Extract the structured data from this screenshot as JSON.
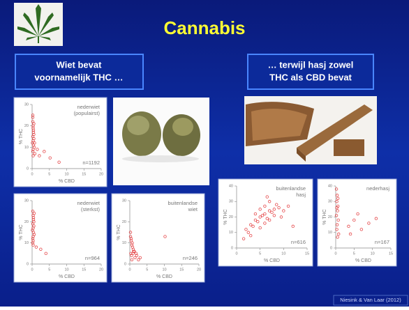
{
  "header": {
    "title": "Cannabis"
  },
  "callouts": [
    {
      "lines": [
        "Wiet bevat",
        "voornamelijk THC …"
      ]
    },
    {
      "lines": [
        "… terwijl hasj zowel",
        "THC als CBD bevat"
      ]
    }
  ],
  "footer": "Niesink & Van Laar (2012)",
  "chart_data": [
    {
      "type": "scatter",
      "title_lines": [
        "nederwiet",
        "(populairst)"
      ],
      "n_label": "n=1192",
      "x_label": "% CBD",
      "y_label": "% THC",
      "xlim": [
        0,
        20
      ],
      "xticks": [
        0,
        5,
        10,
        15,
        20
      ],
      "ylim": [
        0,
        30
      ],
      "yticks": [
        0,
        10,
        20,
        30
      ],
      "color": "#e0282a",
      "x": [
        0.2,
        0.3,
        0.4,
        0.2,
        0.5,
        0.3,
        0.1,
        0.4,
        0.6,
        0.3,
        0.2,
        0.5,
        0.4,
        0.3,
        0.7,
        0.2,
        0.8,
        0.3,
        0.5,
        0.2,
        3.5,
        5.2,
        7.8,
        2.1,
        1.5
      ],
      "y": [
        22,
        19,
        17,
        15,
        14,
        13,
        12,
        11,
        10,
        9,
        8,
        16,
        18,
        20,
        12,
        24,
        7,
        6,
        21,
        25,
        8,
        5,
        3,
        6,
        9
      ]
    },
    {
      "type": "scatter",
      "title_lines": [
        "nederwiet",
        "(sterkst)"
      ],
      "n_label": "n=964",
      "x_label": "% CBD",
      "y_label": "% THC",
      "xlim": [
        0,
        20
      ],
      "xticks": [
        0,
        5,
        10,
        15,
        20
      ],
      "ylim": [
        0,
        30
      ],
      "yticks": [
        0,
        10,
        20,
        30
      ],
      "color": "#e0282a",
      "x": [
        0.2,
        0.3,
        0.4,
        0.2,
        0.5,
        0.3,
        0.1,
        0.4,
        0.6,
        0.3,
        0.2,
        0.5,
        0.4,
        0.3,
        0.2,
        0.6,
        0.3,
        2.5,
        4.0,
        1.2
      ],
      "y": [
        25,
        23,
        21,
        19,
        18,
        17,
        16,
        15,
        14,
        13,
        12,
        20,
        22,
        11,
        10,
        24,
        9,
        7,
        5,
        8
      ]
    },
    {
      "type": "scatter",
      "title_lines": [
        "buitenlandse",
        "wiet"
      ],
      "n_label": "n=246",
      "x_label": "% CBD",
      "y_label": "% THC",
      "xlim": [
        0,
        20
      ],
      "xticks": [
        0,
        5,
        10,
        15,
        20
      ],
      "ylim": [
        0,
        30
      ],
      "yticks": [
        0,
        10,
        20,
        30
      ],
      "color": "#e0282a",
      "x": [
        0.2,
        0.4,
        0.6,
        0.8,
        1.0,
        1.3,
        0.3,
        0.5,
        0.9,
        1.5,
        2.0,
        2.5,
        0.7,
        1.1,
        0.2,
        0.4,
        3.0,
        1.8,
        0.6,
        10.2
      ],
      "y": [
        13,
        11,
        9,
        8,
        7,
        6,
        5,
        4,
        5,
        3,
        4,
        2,
        10,
        6,
        15,
        12,
        3,
        5,
        2,
        13
      ]
    },
    {
      "type": "scatter",
      "title_lines": [
        "buitenlandse",
        "hasj"
      ],
      "n_label": "n=616",
      "x_label": "% CBD",
      "y_label": "% THC",
      "xlim": [
        0,
        15
      ],
      "xticks": [
        0,
        5,
        10,
        15
      ],
      "ylim": [
        0,
        40
      ],
      "yticks": [
        0,
        10,
        20,
        30,
        40
      ],
      "color": "#e0282a",
      "x": [
        2,
        3,
        4,
        5,
        6,
        7,
        8,
        9,
        4.5,
        5.5,
        6.5,
        7.5,
        3.5,
        8.5,
        5,
        6,
        7,
        4,
        9.5,
        10,
        2.5,
        6,
        5,
        7,
        8,
        3,
        11,
        1.5,
        12,
        6.5
      ],
      "y": [
        12,
        15,
        18,
        20,
        22,
        24,
        25,
        26,
        17,
        21,
        19,
        23,
        14,
        28,
        25,
        27,
        30,
        22,
        20,
        24,
        10,
        16,
        13,
        18,
        21,
        8,
        27,
        6,
        14,
        33
      ]
    },
    {
      "type": "scatter",
      "title_lines": [
        "nederhasj"
      ],
      "n_label": "n=167",
      "x_label": "% CBD",
      "y_label": "% THC",
      "xlim": [
        0,
        15
      ],
      "xticks": [
        0,
        5,
        10,
        15
      ],
      "ylim": [
        0,
        40
      ],
      "yticks": [
        0,
        10,
        20,
        30,
        40
      ],
      "color": "#e0282a",
      "x": [
        0.2,
        0.4,
        0.3,
        0.6,
        0.5,
        0.2,
        0.7,
        0.4,
        0.3,
        0.8,
        0.5,
        0.6,
        0.3,
        3.5,
        5,
        7,
        9,
        6,
        11,
        4
      ],
      "y": [
        38,
        34,
        30,
        27,
        24,
        21,
        18,
        15,
        12,
        9,
        7,
        32,
        26,
        14,
        18,
        12,
        16,
        22,
        19,
        9
      ]
    }
  ]
}
